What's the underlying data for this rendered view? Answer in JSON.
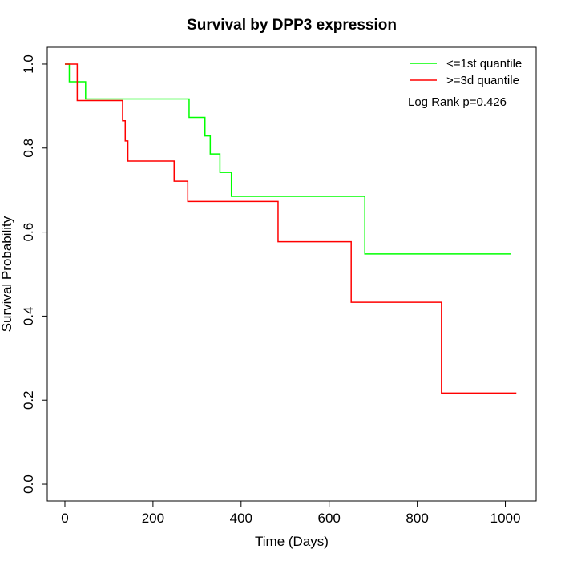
{
  "chart_data": {
    "type": "line",
    "title": "Survival by DPP3 expression",
    "xlabel": "Time (Days)",
    "ylabel": "Survival Probability",
    "xlim": [
      -40,
      1070
    ],
    "ylim": [
      -0.04,
      1.04
    ],
    "xticks": [
      0,
      200,
      400,
      600,
      800,
      1000
    ],
    "yticks": [
      0.0,
      0.2,
      0.4,
      0.6,
      0.8,
      1.0
    ],
    "xtick_labels": [
      "0",
      "200",
      "400",
      "600",
      "800",
      "1000"
    ],
    "ytick_labels": [
      "0.0",
      "0.2",
      "0.4",
      "0.6",
      "0.8",
      "1.0"
    ],
    "grid": false,
    "legend_position": "top-right",
    "annotation": "Log Rank p=0.426",
    "series": [
      {
        "name": "<=1st quantile",
        "color": "#00ff00",
        "step": true,
        "points": [
          [
            0,
            1.0
          ],
          [
            10,
            0.958
          ],
          [
            47,
            0.917
          ],
          [
            282,
            0.873
          ],
          [
            318,
            0.829
          ],
          [
            330,
            0.786
          ],
          [
            352,
            0.742
          ],
          [
            378,
            0.685
          ],
          [
            681,
            0.548
          ],
          [
            1012,
            0.548
          ]
        ]
      },
      {
        "name": ">=3d quantile",
        "color": "#ff0000",
        "step": true,
        "points": [
          [
            0,
            1.0
          ],
          [
            28,
            0.913
          ],
          [
            131,
            0.865
          ],
          [
            137,
            0.817
          ],
          [
            143,
            0.769
          ],
          [
            248,
            0.721
          ],
          [
            279,
            0.673
          ],
          [
            484,
            0.577
          ],
          [
            650,
            0.433
          ],
          [
            855,
            0.217
          ],
          [
            1025,
            0.217
          ]
        ]
      }
    ]
  }
}
